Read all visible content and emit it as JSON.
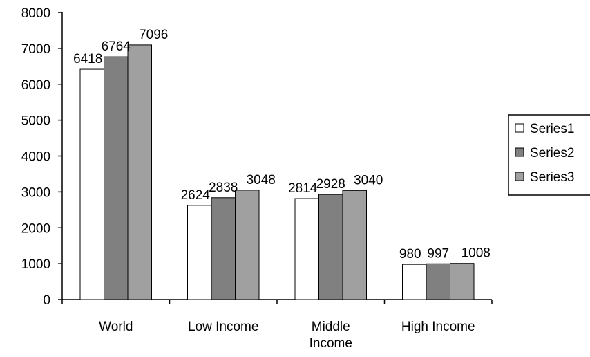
{
  "chart_data": {
    "type": "bar",
    "categories": [
      [
        "World"
      ],
      [
        "Low Income"
      ],
      [
        "Middle",
        "Income"
      ],
      [
        "High Income"
      ]
    ],
    "series": [
      {
        "name": "Series1",
        "color": "#ffffff",
        "values": [
          6418,
          2624,
          2814,
          980
        ]
      },
      {
        "name": "Series2",
        "color": "#808080",
        "values": [
          6764,
          2838,
          2928,
          997
        ]
      },
      {
        "name": "Series3",
        "color": "#a0a0a0",
        "values": [
          7096,
          3048,
          3040,
          1008
        ]
      }
    ],
    "yticks": [
      0,
      1000,
      2000,
      3000,
      4000,
      5000,
      6000,
      7000,
      8000
    ],
    "ylim": [
      0,
      8000
    ],
    "grid": false,
    "legend_position": "right"
  }
}
